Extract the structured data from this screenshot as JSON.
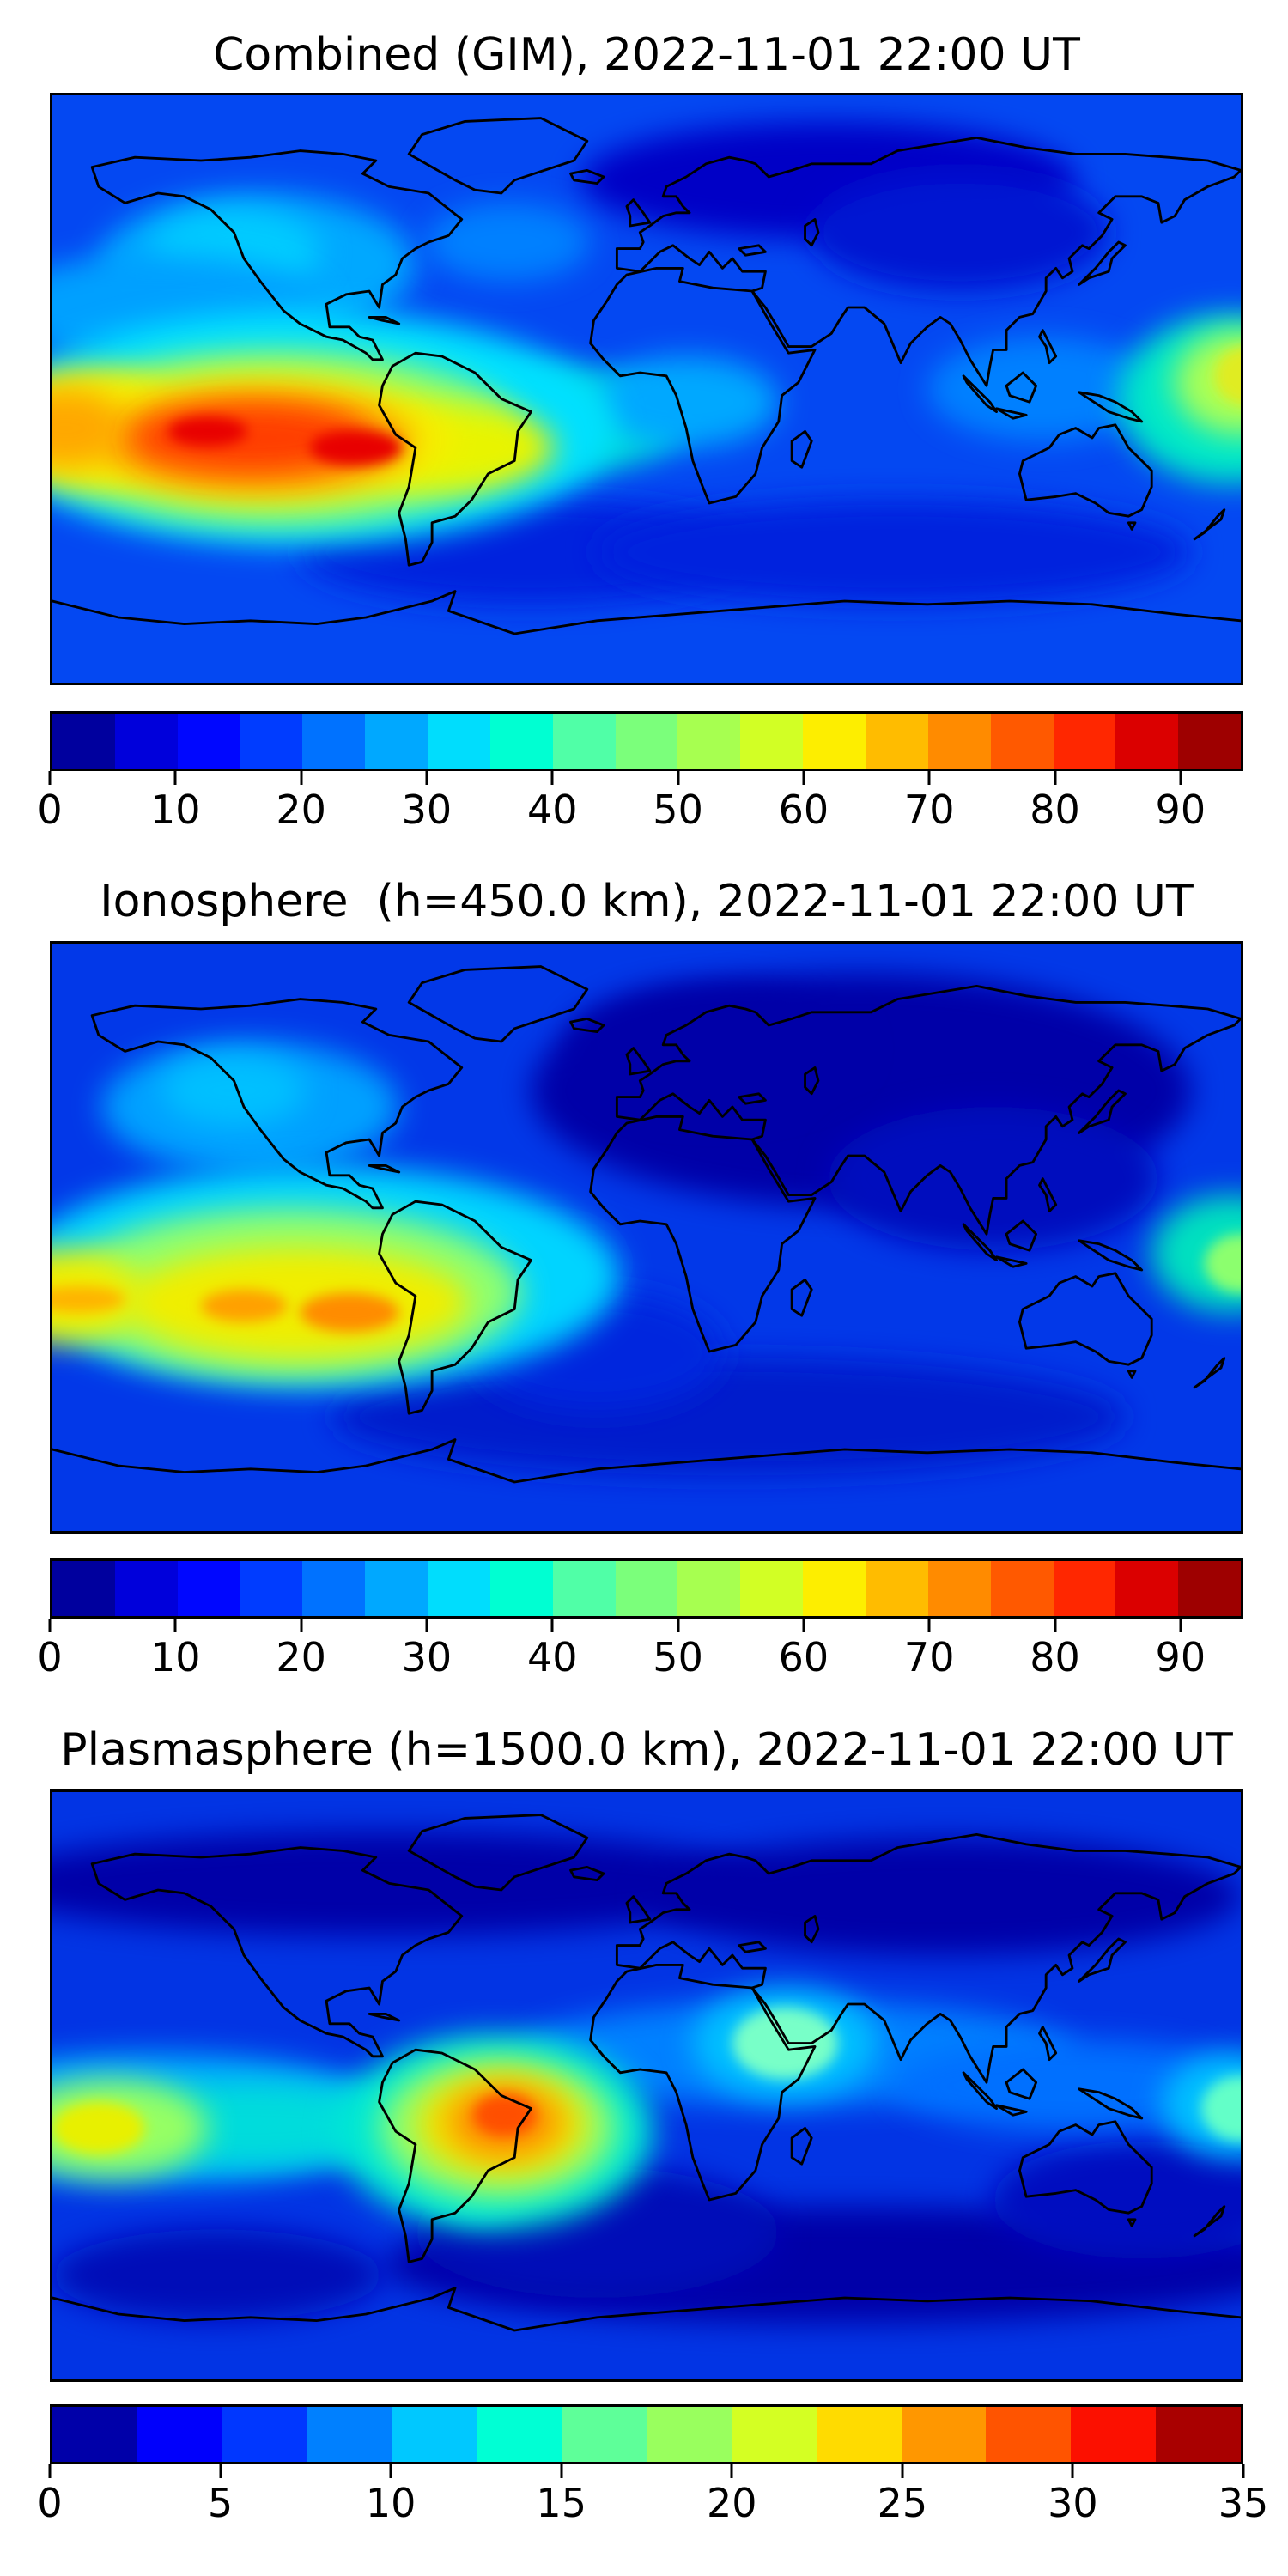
{
  "figure": {
    "timestamp": "2022-11-01 22:00 UT",
    "background": "#ffffff"
  },
  "chart_data": [
    {
      "type": "heatmap",
      "title": "Combined (GIM), 2022-11-01 22:00 UT",
      "projection": "equirectangular",
      "lon_range": [
        -180,
        180
      ],
      "lat_range": [
        -90,
        90
      ],
      "grid": false,
      "colormap": "jet",
      "colorbar_orientation": "horizontal",
      "levels_min": 0,
      "levels_max": 95,
      "levels_step": 5,
      "colorbar_ticks": [
        0,
        10,
        20,
        30,
        40,
        50,
        60,
        70,
        80,
        90
      ],
      "segment_colors": [
        "#00009E",
        "#0000DB",
        "#0007FF",
        "#003CFF",
        "#0072FF",
        "#00A8FF",
        "#00DDFD",
        "#00FFD2",
        "#50FFA7",
        "#7BFF7B",
        "#A7FF50",
        "#D2FF25",
        "#FDEE00",
        "#FFBC00",
        "#FF8B00",
        "#FF5900",
        "#FF2700",
        "#DB0000",
        "#9E0000"
      ],
      "field_peak_value": 95,
      "field_peak_location": {
        "lon": -110,
        "lat": -15
      },
      "field_min_value": 2,
      "field_min_location": {
        "lon": 40,
        "lat": 65
      },
      "base_color": "#0448F2",
      "features": [
        {
          "lon": 55,
          "lat": 64,
          "rx": 75,
          "ry": 18,
          "c": "#0000C6"
        },
        {
          "lon": 95,
          "lat": 48,
          "rx": 45,
          "ry": 18,
          "c": "#0014D2"
        },
        {
          "lon": -35,
          "lat": -50,
          "rx": 70,
          "ry": 16,
          "c": "#0022DE"
        },
        {
          "lon": 75,
          "lat": -50,
          "rx": 90,
          "ry": 16,
          "c": "#0022DE"
        },
        {
          "lon": -118,
          "lat": 38,
          "rx": 48,
          "ry": 22,
          "c": "#00A8FF"
        },
        {
          "lon": -125,
          "lat": 42,
          "rx": 26,
          "ry": 13,
          "c": "#00CCFF"
        },
        {
          "lon": -42,
          "lat": 45,
          "rx": 25,
          "ry": 12,
          "c": "#0080FF"
        },
        {
          "lon": -148,
          "lat": 25,
          "rx": 50,
          "ry": 16,
          "c": "#00A0FF"
        },
        {
          "lon": -28,
          "lat": -10,
          "rx": 40,
          "ry": 16,
          "c": "#00E0D8"
        },
        {
          "lon": 12,
          "lat": -4,
          "rx": 28,
          "ry": 14,
          "c": "#00A8FF"
        },
        {
          "lon": 120,
          "lat": 0,
          "rx": 35,
          "ry": 16,
          "c": "#0080FF"
        },
        {
          "lon": -105,
          "lat": -12,
          "rx": 95,
          "ry": 36,
          "c": "#00E0FF"
        },
        {
          "lon": -112,
          "lat": -15,
          "rx": 75,
          "ry": 27,
          "c": "#8CFF6E"
        },
        {
          "lon": -60,
          "lat": -18,
          "rx": 32,
          "ry": 13,
          "c": "#E8F400"
        },
        {
          "lon": -116,
          "lat": -15,
          "rx": 58,
          "ry": 20,
          "c": "#F6EE00"
        },
        {
          "lon": -170,
          "lat": -12,
          "rx": 30,
          "ry": 18,
          "c": "#F6EE00"
        },
        {
          "lon": -118,
          "lat": -16,
          "rx": 47,
          "ry": 15,
          "c": "#FF9800"
        },
        {
          "lon": -176,
          "lat": -12,
          "rx": 18,
          "ry": 12,
          "c": "#FFA800"
        },
        {
          "lon": -120,
          "lat": -15,
          "rx": 36,
          "ry": 10.5,
          "c": "#FF3C00"
        },
        {
          "lon": -133,
          "lat": -13,
          "rx": 12,
          "ry": 4.5,
          "c": "#E80000",
          "core": true
        },
        {
          "lon": -88,
          "lat": -18,
          "rx": 14,
          "ry": 5.5,
          "c": "#E80000",
          "core": true
        },
        {
          "lon": 177,
          "lat": -3,
          "rx": 34,
          "ry": 26,
          "c": "#00E8C8"
        },
        {
          "lon": 180,
          "lat": 2,
          "rx": 20,
          "ry": 16,
          "c": "#AAFF55"
        },
        {
          "lon": 182,
          "lat": 4,
          "rx": 10,
          "ry": 9,
          "c": "#E0EC20",
          "core": true
        }
      ]
    },
    {
      "type": "heatmap",
      "title": "Ionosphere  (h=450.0 km), 2022-11-01 22:00 UT",
      "projection": "equirectangular",
      "lon_range": [
        -180,
        180
      ],
      "lat_range": [
        -90,
        90
      ],
      "grid": false,
      "colormap": "jet",
      "colorbar_orientation": "horizontal",
      "levels_min": 0,
      "levels_max": 95,
      "levels_step": 5,
      "colorbar_ticks": [
        0,
        10,
        20,
        30,
        40,
        50,
        60,
        70,
        80,
        90
      ],
      "segment_colors": [
        "#00009E",
        "#0000DB",
        "#0007FF",
        "#003CFF",
        "#0072FF",
        "#00A8FF",
        "#00DDFD",
        "#00FFD2",
        "#50FFA7",
        "#7BFF7B",
        "#A7FF50",
        "#D2FF25",
        "#FDEE00",
        "#FFBC00",
        "#FF8B00",
        "#FF5900",
        "#FF2700",
        "#DB0000",
        "#9E0000"
      ],
      "field_peak_value": 70,
      "field_peak_location": {
        "lon": -105,
        "lat": -20
      },
      "field_min_value": 2,
      "field_min_location": {
        "lon": 70,
        "lat": 45
      },
      "base_color": "#0238E8",
      "features": [
        {
          "lon": 65,
          "lat": 45,
          "rx": 100,
          "ry": 36,
          "c": "#0000A8"
        },
        {
          "lon": 20,
          "lat": 58,
          "rx": 45,
          "ry": 20,
          "c": "#0000A8"
        },
        {
          "lon": 105,
          "lat": 18,
          "rx": 50,
          "ry": 22,
          "c": "#0008BE"
        },
        {
          "lon": 25,
          "lat": -55,
          "rx": 120,
          "ry": 18,
          "c": "#001ACC"
        },
        {
          "lon": -15,
          "lat": -35,
          "rx": 38,
          "ry": 18,
          "c": "#0026DE"
        },
        {
          "lon": -120,
          "lat": 40,
          "rx": 45,
          "ry": 20,
          "c": "#00A0FF"
        },
        {
          "lon": -125,
          "lat": 45,
          "rx": 22,
          "ry": 11,
          "c": "#00C0FF"
        },
        {
          "lon": -28,
          "lat": -8,
          "rx": 18,
          "ry": 11,
          "c": "#0030E8"
        },
        {
          "lon": -100,
          "lat": -12,
          "rx": 92,
          "ry": 34,
          "c": "#00D4FF"
        },
        {
          "lon": -108,
          "lat": -17,
          "rx": 70,
          "ry": 26,
          "c": "#8EFF70"
        },
        {
          "lon": -106,
          "lat": -20,
          "rx": 52,
          "ry": 17,
          "c": "#F0EE00"
        },
        {
          "lon": -178,
          "lat": -18,
          "rx": 26,
          "ry": 14,
          "c": "#F0EE00"
        },
        {
          "lon": -172,
          "lat": -19,
          "rx": 14,
          "ry": 4,
          "c": "#FFB400",
          "core": true
        },
        {
          "lon": -122,
          "lat": -21,
          "rx": 13,
          "ry": 5,
          "c": "#FFA000",
          "core": true
        },
        {
          "lon": -90,
          "lat": -23,
          "rx": 15,
          "ry": 6,
          "c": "#FF8C00",
          "core": true
        },
        {
          "lon": 177,
          "lat": -5,
          "rx": 24,
          "ry": 18,
          "c": "#00E0C0"
        },
        {
          "lon": 180,
          "lat": -8,
          "rx": 11,
          "ry": 9,
          "c": "#8CFF6E",
          "core": true
        }
      ]
    },
    {
      "type": "heatmap",
      "title": "Plasmasphere (h=1500.0 km), 2022-11-01 22:00 UT",
      "projection": "equirectangular",
      "lon_range": [
        -180,
        180
      ],
      "lat_range": [
        -90,
        90
      ],
      "grid": false,
      "colormap": "jet",
      "colorbar_orientation": "horizontal",
      "levels_min": 0,
      "levels_max": 35,
      "levels_step": 2.5,
      "colorbar_ticks": [
        0,
        5,
        10,
        15,
        20,
        25,
        30,
        35
      ],
      "segment_colors": [
        "#0000A9",
        "#0000FC",
        "#0037FF",
        "#0080FF",
        "#00C8FF",
        "#00FFD4",
        "#5EFF99",
        "#99FF5E",
        "#D4FF23",
        "#FFDB00",
        "#FF9700",
        "#FF5400",
        "#FC1000",
        "#A90000"
      ],
      "field_peak_value": 32,
      "field_peak_location": {
        "lon": -43,
        "lat": -10
      },
      "field_min_value": 2,
      "field_min_location": {
        "lon": 60,
        "lat": -55
      },
      "base_color": "#0234E4",
      "features": [
        {
          "lon": -80,
          "lat": 62,
          "rx": 120,
          "ry": 16,
          "c": "#0000A8"
        },
        {
          "lon": 90,
          "lat": 58,
          "rx": 90,
          "ry": 18,
          "c": "#0000A8"
        },
        {
          "lon": 60,
          "lat": -55,
          "rx": 140,
          "ry": 18,
          "c": "#0000A8"
        },
        {
          "lon": -130,
          "lat": -58,
          "rx": 50,
          "ry": 14,
          "c": "#0008B8"
        },
        {
          "lon": -15,
          "lat": -45,
          "rx": 55,
          "ry": 20,
          "c": "#0008B8"
        },
        {
          "lon": 150,
          "lat": -35,
          "rx": 45,
          "ry": 18,
          "c": "#000CC0"
        },
        {
          "lon": -150,
          "lat": -10,
          "rx": 75,
          "ry": 20,
          "c": "#00AAFF"
        },
        {
          "lon": 45,
          "lat": 10,
          "rx": 85,
          "ry": 16,
          "c": "#0080FF"
        },
        {
          "lon": 130,
          "lat": 0,
          "rx": 55,
          "ry": 14,
          "c": "#0070FF"
        },
        {
          "lon": -120,
          "lat": -12,
          "rx": 50,
          "ry": 13,
          "c": "#00DCDC"
        },
        {
          "lon": -163,
          "lat": -13,
          "rx": 30,
          "ry": 15,
          "c": "#96FF64"
        },
        {
          "lon": -166,
          "lat": -13,
          "rx": 14,
          "ry": 8,
          "c": "#E8F000",
          "core": true
        },
        {
          "lon": -52,
          "lat": -28,
          "rx": 16,
          "ry": 12,
          "c": "#00C8F0"
        },
        {
          "lon": -46,
          "lat": -14,
          "rx": 48,
          "ry": 30,
          "c": "#00E8D4"
        },
        {
          "lon": -45,
          "lat": -13,
          "rx": 36,
          "ry": 22,
          "c": "#8CFF6E"
        },
        {
          "lon": -44,
          "lat": -12,
          "rx": 26,
          "ry": 16,
          "c": "#F0E400"
        },
        {
          "lon": -43,
          "lat": -11,
          "rx": 17,
          "ry": 11,
          "c": "#FF9000"
        },
        {
          "lon": -43,
          "lat": -9,
          "rx": 9.5,
          "ry": 6.5,
          "c": "#FF5000",
          "core": true
        },
        {
          "lon": 42,
          "lat": 13,
          "rx": 28,
          "ry": 17,
          "c": "#00C0FF"
        },
        {
          "lon": 42,
          "lat": 13,
          "rx": 16,
          "ry": 11,
          "c": "#78FFC8",
          "core": true
        },
        {
          "lon": 178,
          "lat": -6,
          "rx": 22,
          "ry": 16,
          "c": "#00C0FF"
        },
        {
          "lon": 180,
          "lat": -7,
          "rx": 12,
          "ry": 10,
          "c": "#64FFC8",
          "core": true
        }
      ]
    }
  ]
}
